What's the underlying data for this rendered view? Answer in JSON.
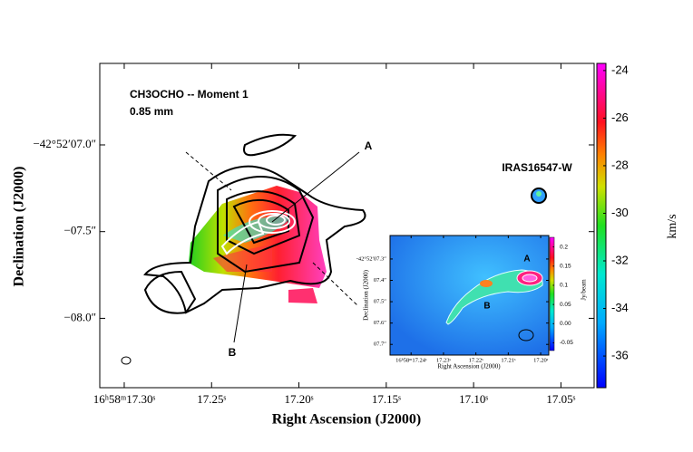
{
  "chart_data": [
    {
      "type": "image",
      "title": "CH3OCHO -- Moment 1",
      "subtitle": "0.85 mm",
      "x_label": "Right Ascension (J2000)",
      "y_label": "Declination (J2000)",
      "annotations": [
        "A",
        "B",
        "IRAS16547-W"
      ],
      "xlim": [
        17.314,
        17.031
      ],
      "xticks": [
        {
          "value": 17.3,
          "label": "16ʰ58ᵐ17.30ˢ"
        },
        {
          "value": 17.25,
          "label": "17.25ˢ"
        },
        {
          "value": 17.2,
          "label": "17.20ˢ"
        },
        {
          "value": 17.15,
          "label": "17.15ˢ"
        },
        {
          "value": 17.1,
          "label": "17.10ˢ"
        },
        {
          "value": 17.05,
          "label": "17.05ˢ"
        }
      ],
      "ylim": [
        8.4,
        6.53
      ],
      "yticks": [
        {
          "value": 7.0,
          "label": "−42°52′07.0″"
        },
        {
          "value": 7.5,
          "label": "−07.5″"
        },
        {
          "value": 8.0,
          "label": "−08.0″"
        }
      ],
      "colorbar_label": "km/s",
      "clim": [
        -37.33,
        -23.7
      ],
      "cticks": [
        -24,
        -26,
        -28,
        -30,
        -32,
        -34,
        -36
      ]
    },
    {
      "type": "image",
      "x_label": "Right Ascension (J2000)",
      "y_label": "Declination (J2000)",
      "annotations": [
        "A",
        "B"
      ],
      "xlim": [
        17.2465,
        17.1975
      ],
      "xticks": [
        {
          "value": 17.24,
          "label": "16ʰ58ᵐ17.24ˢ"
        },
        {
          "value": 17.23,
          "label": "17.23ˢ"
        },
        {
          "value": 17.22,
          "label": "17.22ˢ"
        },
        {
          "value": 17.21,
          "label": "17.21ˢ"
        },
        {
          "value": 17.2,
          "label": "17.20ˢ"
        }
      ],
      "ylim": [
        7.75,
        7.19
      ],
      "yticks": [
        {
          "value": 7.3,
          "label": "-42°52′07.3″"
        },
        {
          "value": 7.4,
          "label": "07.4″"
        },
        {
          "value": 7.5,
          "label": "07.5″"
        },
        {
          "value": 7.6,
          "label": "07.6″"
        },
        {
          "value": 7.7,
          "label": "07.7″"
        }
      ],
      "colorbar_label": "Jy/beam",
      "clim": [
        -0.07,
        0.225
      ],
      "cticks": [
        0.2,
        0.15,
        0.1,
        0.05,
        {
          "value": 0.0,
          "label": "0.00"
        },
        -0.05
      ]
    }
  ]
}
